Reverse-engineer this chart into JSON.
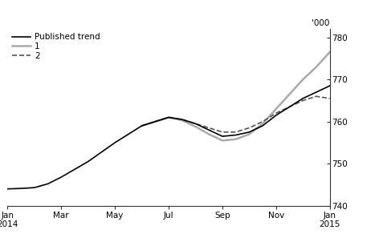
{
  "ylabel": "'000",
  "ylim": [
    740,
    782
  ],
  "yticks": [
    740,
    750,
    760,
    770,
    780
  ],
  "xlim": [
    0,
    12
  ],
  "xtick_positions": [
    0,
    2,
    4,
    6,
    8,
    10,
    12
  ],
  "xtick_labels": [
    "Jan\n2014",
    "Mar",
    "May",
    "Jul",
    "Sep",
    "Nov",
    "Jan\n2015"
  ],
  "published_trend": {
    "x": [
      0,
      0.5,
      1,
      1.5,
      2,
      3,
      4,
      5,
      6,
      6.5,
      7,
      7.5,
      8,
      8.5,
      9,
      9.5,
      10,
      10.5,
      11,
      11.5,
      12
    ],
    "y": [
      744.0,
      744.1,
      744.3,
      745.2,
      746.8,
      750.5,
      755.0,
      759.0,
      761.0,
      760.5,
      759.5,
      758.0,
      756.5,
      756.8,
      757.5,
      759.0,
      761.5,
      763.5,
      765.5,
      767.0,
      768.5
    ],
    "color": "#000000",
    "linewidth": 1.2,
    "linestyle": "solid",
    "label": "Published trend"
  },
  "revision1": {
    "x": [
      5,
      6,
      6.5,
      7,
      7.5,
      8,
      8.5,
      9,
      9.5,
      10,
      10.5,
      11,
      11.5,
      12
    ],
    "y": [
      759.0,
      761.0,
      760.3,
      758.8,
      757.0,
      755.5,
      755.8,
      757.0,
      759.5,
      763.0,
      766.5,
      770.0,
      773.0,
      776.5
    ],
    "color": "#aaaaaa",
    "linewidth": 1.8,
    "linestyle": "solid",
    "label": "1"
  },
  "revision2": {
    "x": [
      5,
      6,
      6.5,
      7,
      7.5,
      8,
      8.5,
      9,
      9.5,
      10,
      10.5,
      11,
      11.5,
      12
    ],
    "y": [
      759.0,
      761.0,
      760.5,
      759.5,
      758.5,
      757.5,
      757.5,
      758.5,
      760.0,
      762.0,
      763.5,
      765.0,
      766.0,
      765.5
    ],
    "color": "#555555",
    "linewidth": 1.2,
    "linestyle": "dashed",
    "label": "2"
  },
  "background_color": "#ffffff",
  "legend_fontsize": 7.5,
  "tick_fontsize": 7.5
}
